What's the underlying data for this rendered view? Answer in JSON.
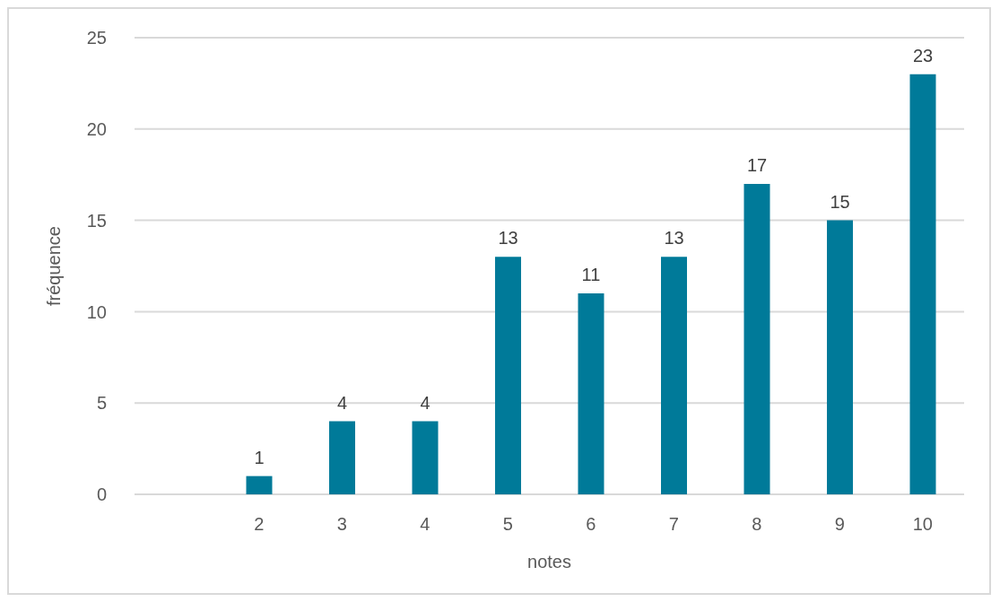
{
  "chart_data": {
    "type": "bar",
    "xlabel": "notes",
    "ylabel": "fréquence",
    "categories": [
      null,
      "2",
      "3",
      "4",
      "5",
      "6",
      "7",
      "8",
      "9",
      "10"
    ],
    "values": [
      null,
      1,
      4,
      4,
      13,
      11,
      13,
      17,
      15,
      23
    ],
    "color": "#007a99",
    "ylim": [
      0,
      25
    ],
    "yticks": [
      0,
      5,
      10,
      15,
      20,
      25
    ],
    "grid": "y",
    "data_labels": true,
    "legend": false
  }
}
